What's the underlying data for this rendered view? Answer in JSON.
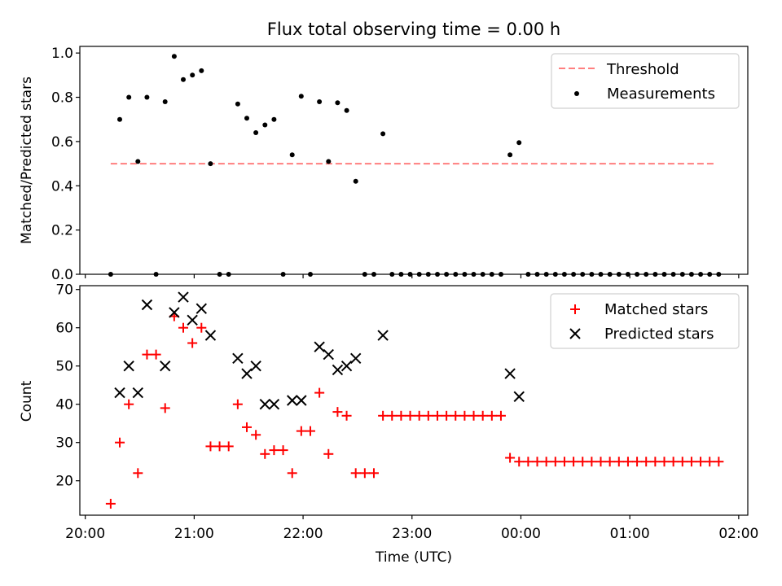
{
  "figure_title": "Flux total observing time = 0.00 h",
  "chart_data": [
    {
      "type": "scatter",
      "title": "Flux total observing time = 0.00 h",
      "xlabel": "",
      "ylabel": "Matched/Predicted stars",
      "xlim": [
        "19:57",
        "02:05"
      ],
      "ylim": [
        0,
        1.03
      ],
      "yticks": [
        0.0,
        0.2,
        0.4,
        0.6,
        0.8,
        1.0
      ],
      "ytick_labels": [
        "0.0",
        "0.2",
        "0.4",
        "0.6",
        "0.8",
        "1.0"
      ],
      "x_tick_label_hidden": true,
      "grid": false,
      "legend_position": "top-right",
      "series": [
        {
          "name": "Threshold",
          "kind": "line",
          "style": "dashed",
          "color": "#ff7f7f",
          "x": [
            "20:14",
            "23:59",
            "01:47"
          ],
          "y": [
            0.5,
            0.5,
            0.5
          ]
        },
        {
          "name": "Measurements",
          "kind": "scatter",
          "marker": "dot",
          "color": "#000000",
          "x": [
            "20:14",
            "20:19",
            "20:24",
            "20:29",
            "20:34",
            "20:39",
            "20:44",
            "20:49",
            "20:54",
            "20:59",
            "21:04",
            "21:09",
            "21:14",
            "21:19",
            "21:24",
            "21:29",
            "21:34",
            "21:39",
            "21:44",
            "21:49",
            "21:54",
            "21:59",
            "22:04",
            "22:09",
            "22:14",
            "22:19",
            "22:24",
            "22:29",
            "22:34",
            "22:39",
            "22:44",
            "22:49",
            "22:54",
            "22:59",
            "23:04",
            "23:09",
            "23:14",
            "23:19",
            "23:24",
            "23:29",
            "23:34",
            "23:39",
            "23:44",
            "23:49",
            "23:54",
            "23:59",
            "00:04",
            "00:09",
            "00:14",
            "00:19",
            "00:24",
            "00:29",
            "00:34",
            "00:39",
            "00:44",
            "00:49",
            "00:54",
            "00:59",
            "01:04",
            "01:09",
            "01:14",
            "01:19",
            "01:24",
            "01:29",
            "01:34",
            "01:39",
            "01:44",
            "01:49"
          ],
          "y": [
            0.0,
            0.7,
            0.8,
            0.51,
            0.8,
            0.0,
            0.78,
            0.985,
            0.88,
            0.9,
            0.92,
            0.5,
            0.0,
            0.0,
            0.77,
            0.705,
            0.64,
            0.675,
            0.7,
            0.0,
            0.54,
            0.805,
            0.0,
            0.78,
            0.51,
            0.775,
            0.74,
            0.42,
            0.0,
            0.0,
            0.635,
            0.0,
            0.0,
            0.0,
            0.0,
            0.0,
            0.0,
            0.0,
            0.0,
            0.0,
            0.0,
            0.0,
            0.0,
            0.0,
            0.54,
            0.595,
            0.0,
            0.0,
            0.0,
            0.0,
            0.0,
            0.0,
            0.0,
            0.0,
            0.0,
            0.0,
            0.0,
            0.0,
            0.0,
            0.0,
            0.0,
            0.0,
            0.0,
            0.0,
            0.0,
            0.0,
            0.0,
            0.0
          ]
        }
      ]
    },
    {
      "type": "scatter",
      "title": "",
      "xlabel": "Time (UTC)",
      "ylabel": "Count",
      "xlim": [
        "19:57",
        "02:05"
      ],
      "ylim": [
        11,
        71
      ],
      "yticks": [
        20,
        30,
        40,
        50,
        60,
        70
      ],
      "ytick_labels": [
        "20",
        "30",
        "40",
        "50",
        "60",
        "70"
      ],
      "xticks": [
        "20:00",
        "21:00",
        "22:00",
        "23:00",
        "00:00",
        "01:00",
        "02:00"
      ],
      "grid": false,
      "legend_position": "top-right",
      "series": [
        {
          "name": "Matched stars",
          "kind": "scatter",
          "marker": "plus",
          "color": "#ff0000",
          "x": [
            "20:14",
            "20:19",
            "20:24",
            "20:29",
            "20:34",
            "20:39",
            "20:44",
            "20:49",
            "20:54",
            "20:59",
            "21:04",
            "21:09",
            "21:14",
            "21:19",
            "21:24",
            "21:29",
            "21:34",
            "21:39",
            "21:44",
            "21:49",
            "21:54",
            "21:59",
            "22:04",
            "22:09",
            "22:14",
            "22:19",
            "22:24",
            "22:29",
            "22:34",
            "22:39",
            "22:44",
            "22:49",
            "22:54",
            "22:59",
            "23:04",
            "23:09",
            "23:14",
            "23:19",
            "23:24",
            "23:29",
            "23:34",
            "23:39",
            "23:44",
            "23:49",
            "23:54",
            "23:59",
            "00:04",
            "00:09",
            "00:14",
            "00:19",
            "00:24",
            "00:29",
            "00:34",
            "00:39",
            "00:44",
            "00:49",
            "00:54",
            "00:59",
            "01:04",
            "01:09",
            "01:14",
            "01:19",
            "01:24",
            "01:29",
            "01:34",
            "01:39",
            "01:44",
            "01:49"
          ],
          "y": [
            14,
            30,
            40,
            22,
            53,
            53,
            39,
            63,
            60,
            56,
            60,
            29,
            29,
            29,
            40,
            34,
            32,
            27,
            28,
            28,
            22,
            33,
            33,
            43,
            27,
            38,
            37,
            22,
            22,
            22,
            37,
            37,
            37,
            37,
            37,
            37,
            37,
            37,
            37,
            37,
            37,
            37,
            37,
            37,
            26,
            25,
            25,
            25,
            25,
            25,
            25,
            25,
            25,
            25,
            25,
            25,
            25,
            25,
            25,
            25,
            25,
            25,
            25,
            25,
            25,
            25,
            25,
            25
          ]
        },
        {
          "name": "Predicted stars",
          "kind": "scatter",
          "marker": "x",
          "color": "#000000",
          "x": [
            "20:19",
            "20:24",
            "20:29",
            "20:34",
            "20:44",
            "20:49",
            "20:54",
            "20:59",
            "21:04",
            "21:09",
            "21:24",
            "21:29",
            "21:34",
            "21:39",
            "21:44",
            "21:54",
            "21:59",
            "22:09",
            "22:14",
            "22:19",
            "22:24",
            "22:29",
            "22:44",
            "23:54",
            "23:59"
          ],
          "y": [
            43,
            50,
            43,
            66,
            50,
            64,
            68,
            62,
            65,
            58,
            52,
            48,
            50,
            40,
            40,
            41,
            41,
            55,
            53,
            49,
            50,
            52,
            58,
            48,
            42
          ]
        }
      ]
    }
  ]
}
